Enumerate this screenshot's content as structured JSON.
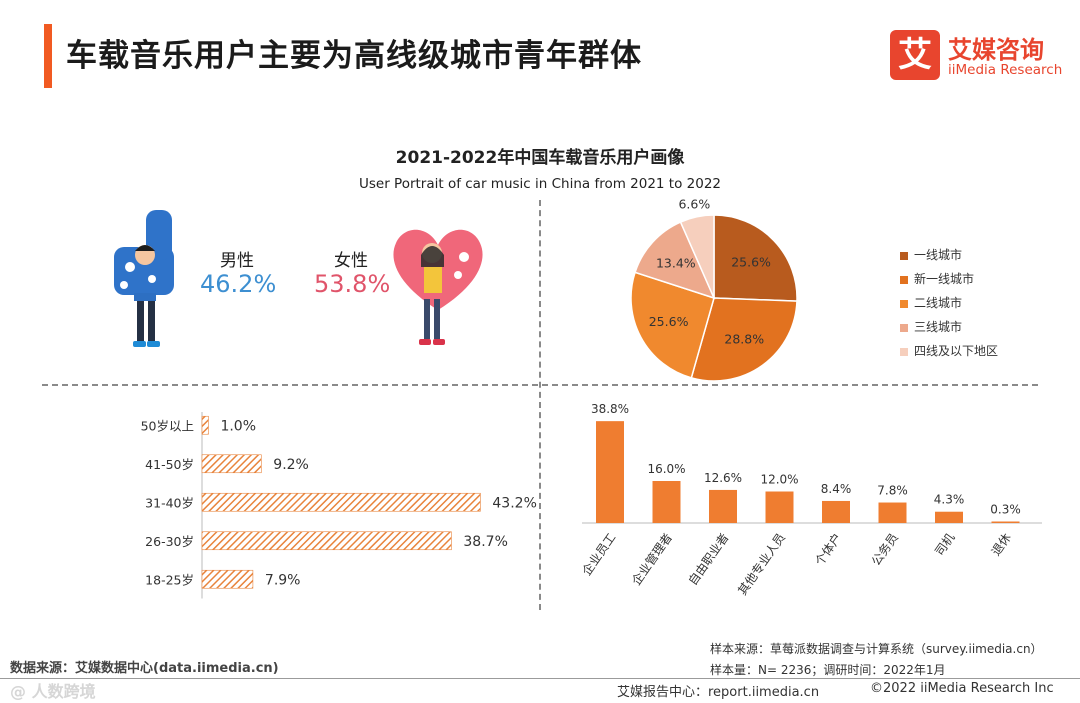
{
  "header": {
    "title": "车载音乐用户主要为高线级城市青年群体",
    "logo_mark": "艾",
    "logo_cn": "艾媒咨询",
    "logo_en": "iiMedia Research"
  },
  "chart_title": "2021-2022年中国车载音乐用户画像",
  "chart_subtitle": "User Portrait of car music in China from 2021 to 2022",
  "gender": {
    "male_label": "男性",
    "male_value": "46.2%",
    "female_label": "女性",
    "female_value": "53.8%"
  },
  "colors": {
    "accent": "#f15a22",
    "brand": "#e8452e",
    "male": "#3d8fd1",
    "female": "#e0546a",
    "bar": "#ef7d30",
    "age_stripe": "#e8843c"
  },
  "chart_data": [
    {
      "id": "city-tier",
      "type": "pie",
      "categories": [
        "一线城市",
        "新一线城市",
        "二线城市",
        "三线城市",
        "四线及以下地区"
      ],
      "values": [
        25.6,
        28.8,
        25.6,
        13.4,
        6.6
      ],
      "labels": [
        "25.6%",
        "28.8%",
        "25.6%",
        "13.4%",
        "6.6%"
      ],
      "colors": [
        "#b85b1e",
        "#e2721f",
        "#f0892e",
        "#eda98c",
        "#f6cfbd"
      ],
      "legend_position": "right"
    },
    {
      "id": "age",
      "type": "bar",
      "orientation": "horizontal",
      "categories": [
        "50岁以上",
        "41-50岁",
        "31-40岁",
        "26-30岁",
        "18-25岁"
      ],
      "values": [
        1.0,
        9.2,
        43.2,
        38.7,
        7.9
      ],
      "labels": [
        "1.0%",
        "9.2%",
        "43.2%",
        "38.7%",
        "7.9%"
      ],
      "xlim": [
        0,
        45
      ]
    },
    {
      "id": "occupation",
      "type": "bar",
      "categories": [
        "企业员工",
        "企业管理者",
        "自由职业者",
        "其他专业人员",
        "个体户",
        "公务员",
        "司机",
        "退休"
      ],
      "values": [
        38.8,
        16.0,
        12.6,
        12.0,
        8.4,
        7.8,
        4.3,
        0.3
      ],
      "labels": [
        "38.8%",
        "16.0%",
        "12.6%",
        "12.0%",
        "8.4%",
        "7.8%",
        "4.3%",
        "0.3%"
      ],
      "ylim": [
        0,
        40
      ]
    }
  ],
  "footer": {
    "sample_source": "样本来源：草莓派数据调查与计算系统（survey.iimedia.cn）",
    "sample_size": "样本量：N= 2236；调研时间：2022年1月",
    "data_source": "数据来源：艾媒数据中心(data.iimedia.cn)",
    "watermark": "@ 人数跨境",
    "report_center": "艾媒报告中心：report.iimedia.cn",
    "copyright": "©2022  iiMedia Research  Inc"
  }
}
